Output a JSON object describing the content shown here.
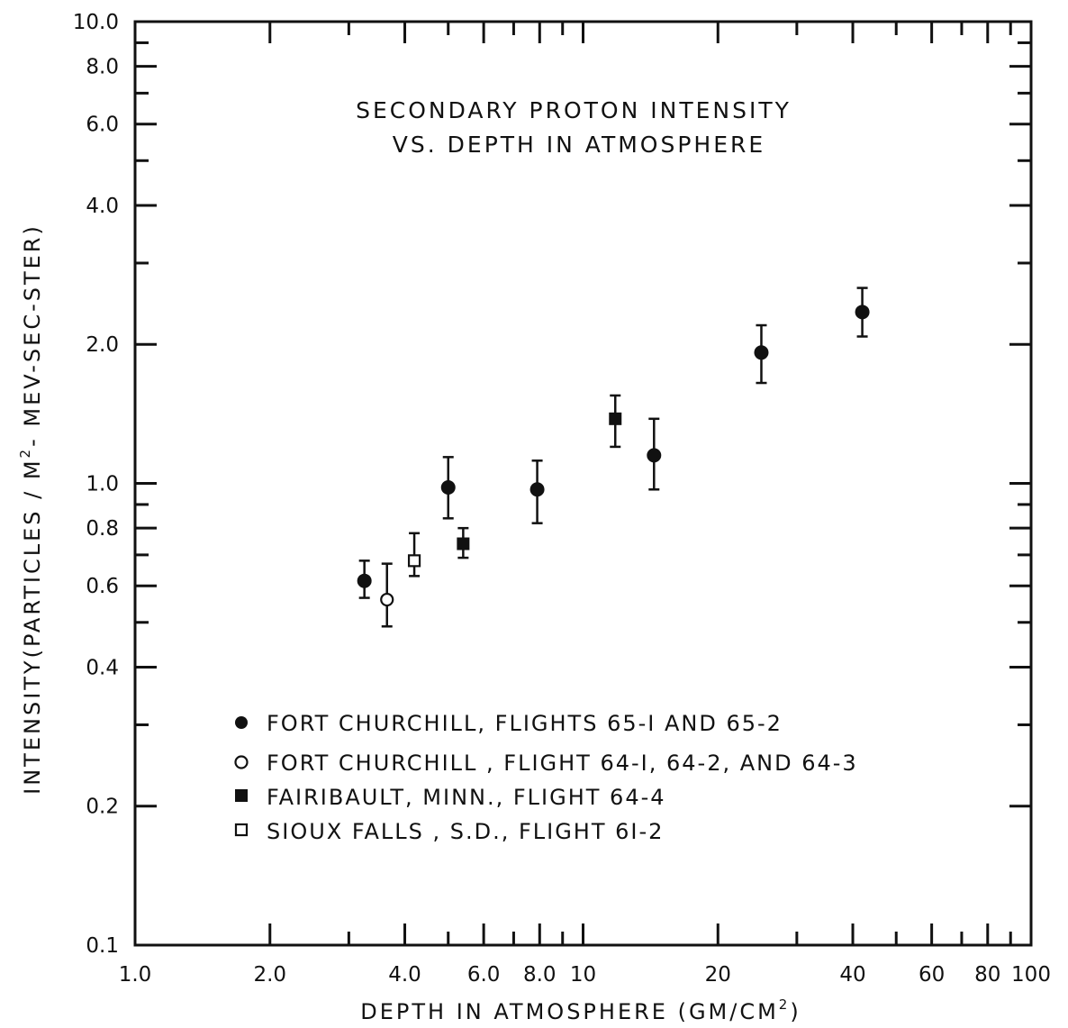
{
  "chart_data": {
    "type": "scatter",
    "title": [
      "SECONDARY  PROTON  INTENSITY",
      "VS. DEPTH  IN  ATMOSPHERE"
    ],
    "xlabel": "DEPTH  IN  ATMOSPHERE  (GM/CM",
    "xlabel_sup": "2",
    "xlabel_suffix": ")",
    "ylabel": "INTENSITY(PARTICLES / M",
    "ylabel_sup": "2",
    "ylabel_suffix": "- MEV-SEC-STER)",
    "xscale": "log",
    "yscale": "log",
    "xlim": [
      1,
      100
    ],
    "ylim": [
      0.1,
      10
    ],
    "x_ticks": [
      {
        "value": 1,
        "label": "1.0"
      },
      {
        "value": 2,
        "label": "2.0"
      },
      {
        "value": 4,
        "label": "4.0"
      },
      {
        "value": 6,
        "label": "6.0"
      },
      {
        "value": 8,
        "label": "8.0"
      },
      {
        "value": 10,
        "label": "10"
      },
      {
        "value": 20,
        "label": "20"
      },
      {
        "value": 40,
        "label": "40"
      },
      {
        "value": 60,
        "label": "60"
      },
      {
        "value": 80,
        "label": "80"
      },
      {
        "value": 100,
        "label": "100"
      }
    ],
    "y_ticks": [
      {
        "value": 0.1,
        "label": "0.1"
      },
      {
        "value": 0.2,
        "label": "0.2"
      },
      {
        "value": 0.4,
        "label": "0.4"
      },
      {
        "value": 0.6,
        "label": "0.6"
      },
      {
        "value": 0.8,
        "label": "0.8"
      },
      {
        "value": 1,
        "label": "1.0"
      },
      {
        "value": 2,
        "label": "2.0"
      },
      {
        "value": 4,
        "label": "4.0"
      },
      {
        "value": 6,
        "label": "6.0"
      },
      {
        "value": 8,
        "label": "8.0"
      },
      {
        "value": 10,
        "label": "10.0"
      }
    ],
    "grid": false,
    "legend_position": "lower-left",
    "series": [
      {
        "name": "FORT  CHURCHILL, FLIGHTS  65-I  AND  65-2",
        "marker": "filled-circle",
        "points": [
          {
            "x": 3.25,
            "y": 0.615,
            "ylo": 0.565,
            "yhi": 0.68
          },
          {
            "x": 5.0,
            "y": 0.98,
            "ylo": 0.84,
            "yhi": 1.14
          },
          {
            "x": 7.9,
            "y": 0.97,
            "ylo": 0.82,
            "yhi": 1.12
          },
          {
            "x": 14.4,
            "y": 1.15,
            "ylo": 0.97,
            "yhi": 1.38
          },
          {
            "x": 25.0,
            "y": 1.92,
            "ylo": 1.65,
            "yhi": 2.2
          },
          {
            "x": 42.0,
            "y": 2.35,
            "ylo": 2.08,
            "yhi": 2.65
          }
        ]
      },
      {
        "name": "FORT  CHURCHILL , FLIGHT   64-I, 64-2, AND  64-3",
        "marker": "open-circle",
        "points": [
          {
            "x": 3.65,
            "y": 0.56,
            "ylo": 0.49,
            "yhi": 0.67
          }
        ]
      },
      {
        "name": "FAIRIBAULT,  MINN.,  FLIGHT  64-4",
        "marker": "filled-square",
        "points": [
          {
            "x": 5.4,
            "y": 0.74,
            "ylo": 0.69,
            "yhi": 0.8
          },
          {
            "x": 11.8,
            "y": 1.38,
            "ylo": 1.2,
            "yhi": 1.55
          }
        ]
      },
      {
        "name": "SIOUX  FALLS , S.D.,  FLIGHT  6I-2",
        "marker": "open-square",
        "points": [
          {
            "x": 4.2,
            "y": 0.68,
            "ylo": 0.63,
            "yhi": 0.78
          }
        ]
      }
    ]
  }
}
